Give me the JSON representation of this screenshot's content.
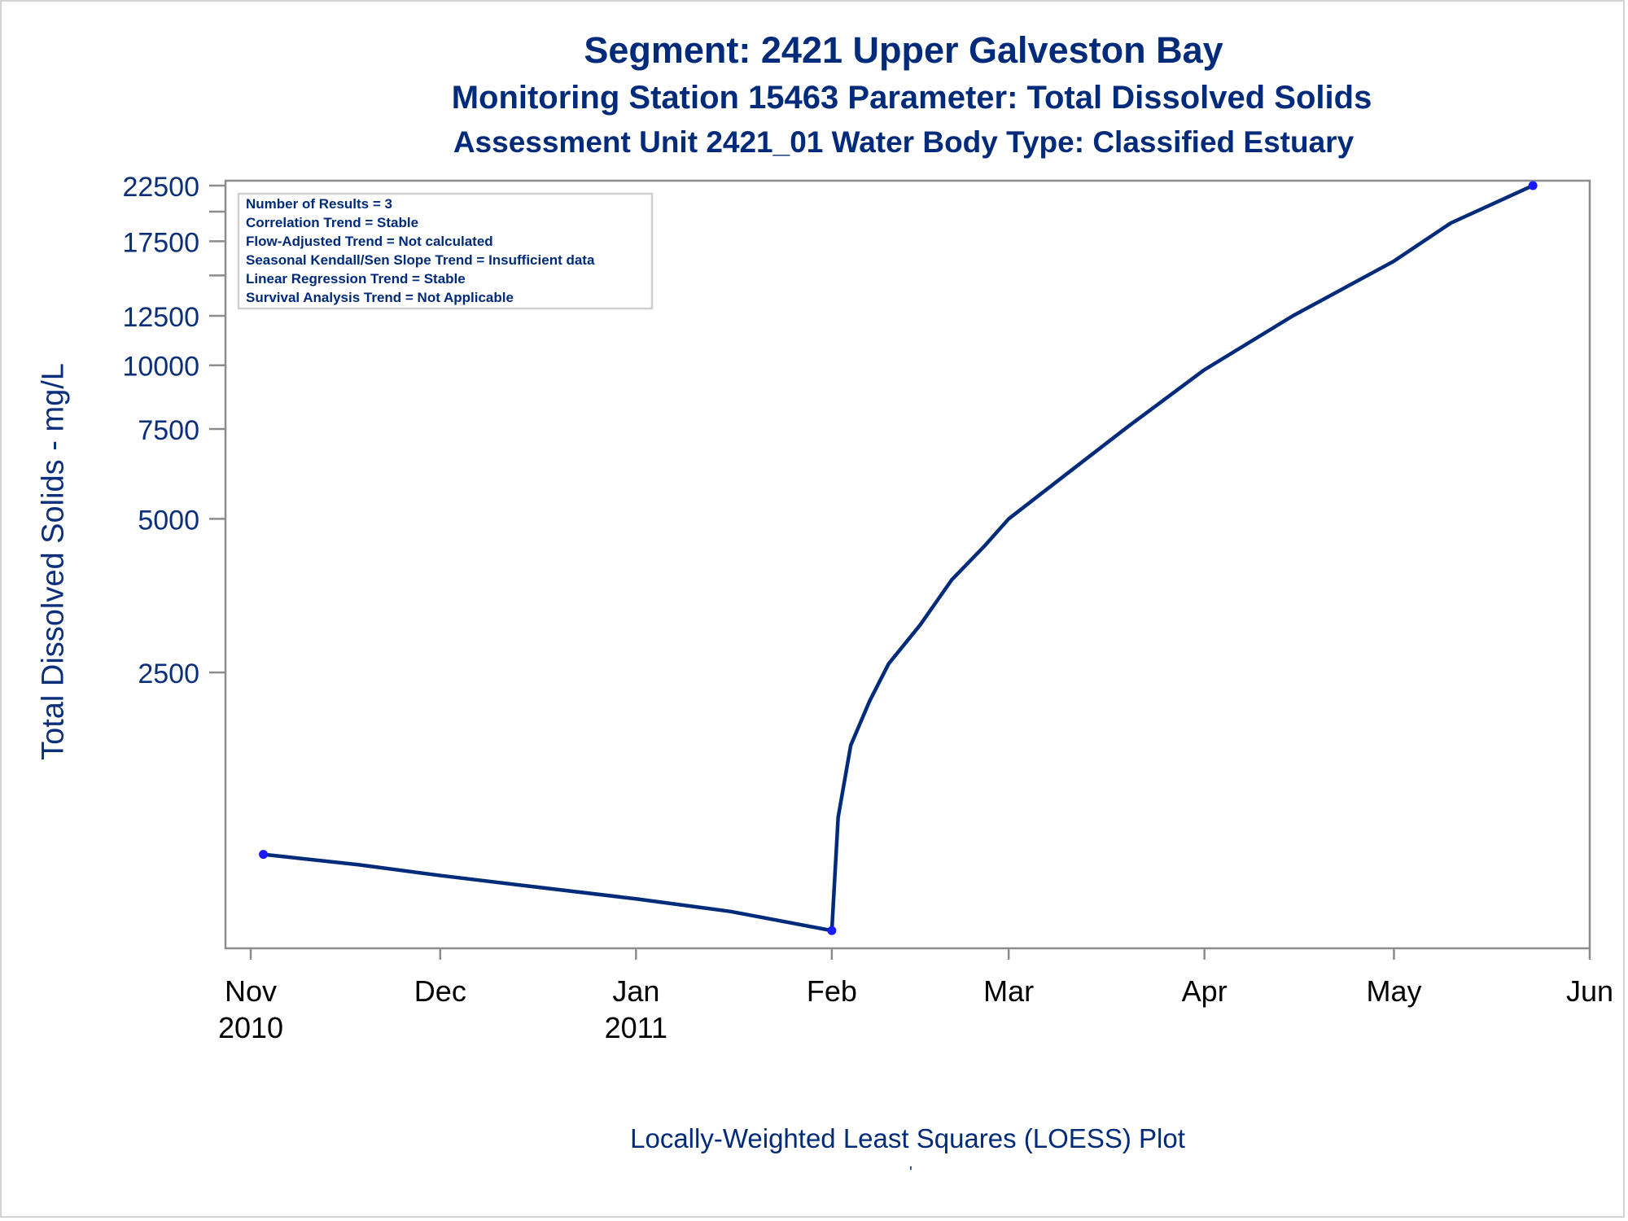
{
  "titles": {
    "line1": "Segment: 2421  Upper Galveston Bay",
    "line2": "Monitoring Station 15463 Parameter: Total Dissolved Solids",
    "line3": "Assessment Unit 2421_01   Water Body Type: Classified Estuary"
  },
  "stats_box": [
    "Number of Results = 3",
    "Correlation Trend = Stable",
    "Flow-Adjusted Trend = Not calculated",
    "Seasonal Kendall/Sen Slope Trend = Insufficient data",
    "Linear Regression Trend = Stable",
    "Survival Analysis Trend = Not Applicable"
  ],
  "footnote": "Locally-Weighted Least Squares (LOESS) Plot",
  "footnote_mark": "'",
  "colors": {
    "line": "#002a7a",
    "marker": "#1a1aff",
    "axis": "#8c8c8c",
    "text": "#0b2f7a"
  },
  "chart_data": {
    "type": "line",
    "title": "Segment: 2421  Upper Galveston Bay",
    "ylabel": "Total Dissolved Solids - mg/L",
    "xlabel": "",
    "y_scale": "log",
    "ylim": [
      720,
      23000
    ],
    "xlim": [
      "2010-10-28",
      "2011-06-01"
    ],
    "y_ticks": [
      2500,
      5000,
      7500,
      10000,
      12500,
      17500,
      22500
    ],
    "y_minor_ticks": [
      15000,
      20000
    ],
    "x_ticks": [
      {
        "date": "2010-11-01",
        "label": "Nov",
        "year": "2010"
      },
      {
        "date": "2010-12-01",
        "label": "Dec",
        "year": ""
      },
      {
        "date": "2011-01-01",
        "label": "Jan",
        "year": "2011"
      },
      {
        "date": "2011-02-01",
        "label": "Feb",
        "year": ""
      },
      {
        "date": "2011-03-01",
        "label": "Mar",
        "year": ""
      },
      {
        "date": "2011-04-01",
        "label": "Apr",
        "year": ""
      },
      {
        "date": "2011-05-01",
        "label": "May",
        "year": ""
      },
      {
        "date": "2011-06-01",
        "label": "Jun",
        "year": ""
      }
    ],
    "observations": [
      {
        "x": "2010-11-03",
        "y": 1100
      },
      {
        "x": "2011-02-01",
        "y": 780
      },
      {
        "x": "2011-05-23",
        "y": 22500
      }
    ],
    "loess_curve": [
      {
        "x": "2010-11-03",
        "y": 1100
      },
      {
        "x": "2010-11-18",
        "y": 1050
      },
      {
        "x": "2010-12-01",
        "y": 1000
      },
      {
        "x": "2010-12-16",
        "y": 950
      },
      {
        "x": "2011-01-01",
        "y": 900
      },
      {
        "x": "2011-01-16",
        "y": 850
      },
      {
        "x": "2011-02-01",
        "y": 780
      },
      {
        "x": "2011-02-02",
        "y": 1300
      },
      {
        "x": "2011-02-04",
        "y": 1800
      },
      {
        "x": "2011-02-07",
        "y": 2200
      },
      {
        "x": "2011-02-10",
        "y": 2600
      },
      {
        "x": "2011-02-15",
        "y": 3100
      },
      {
        "x": "2011-02-20",
        "y": 3800
      },
      {
        "x": "2011-02-25",
        "y": 4400
      },
      {
        "x": "2011-03-01",
        "y": 5000
      },
      {
        "x": "2011-03-10",
        "y": 6100
      },
      {
        "x": "2011-03-20",
        "y": 7600
      },
      {
        "x": "2011-04-01",
        "y": 9800
      },
      {
        "x": "2011-04-15",
        "y": 12500
      },
      {
        "x": "2011-05-01",
        "y": 16000
      },
      {
        "x": "2011-05-10",
        "y": 19000
      },
      {
        "x": "2011-05-23",
        "y": 22500
      }
    ]
  }
}
